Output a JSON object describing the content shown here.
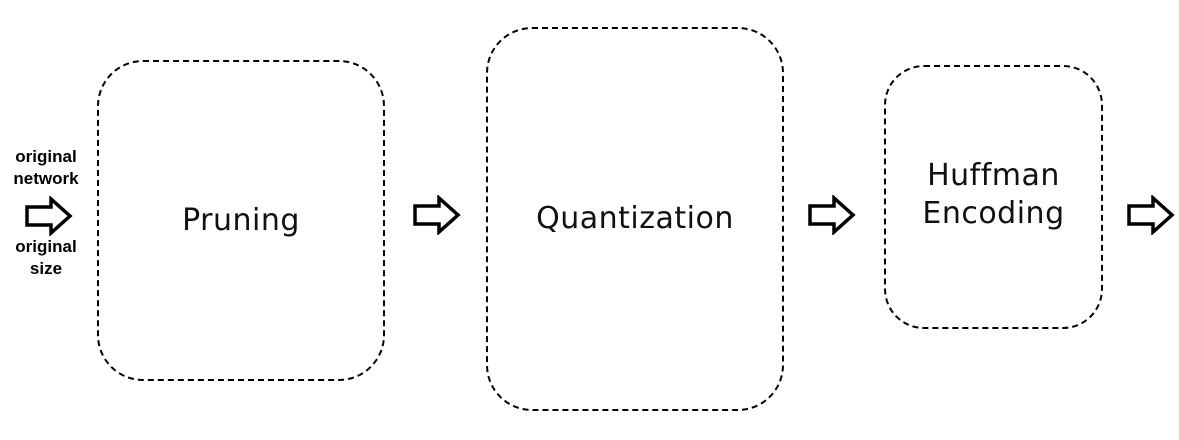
{
  "input": {
    "top_label": [
      "original",
      "network"
    ],
    "bottom_label": [
      "original",
      "size"
    ]
  },
  "stages": [
    {
      "id": "pruning",
      "label": [
        "Pruning"
      ]
    },
    {
      "id": "quantization",
      "label": [
        "Quantization"
      ]
    },
    {
      "id": "huffman",
      "label": [
        "Huffman",
        "Encoding"
      ]
    }
  ],
  "colors": {
    "stroke": "#000000",
    "background": "#ffffff"
  }
}
